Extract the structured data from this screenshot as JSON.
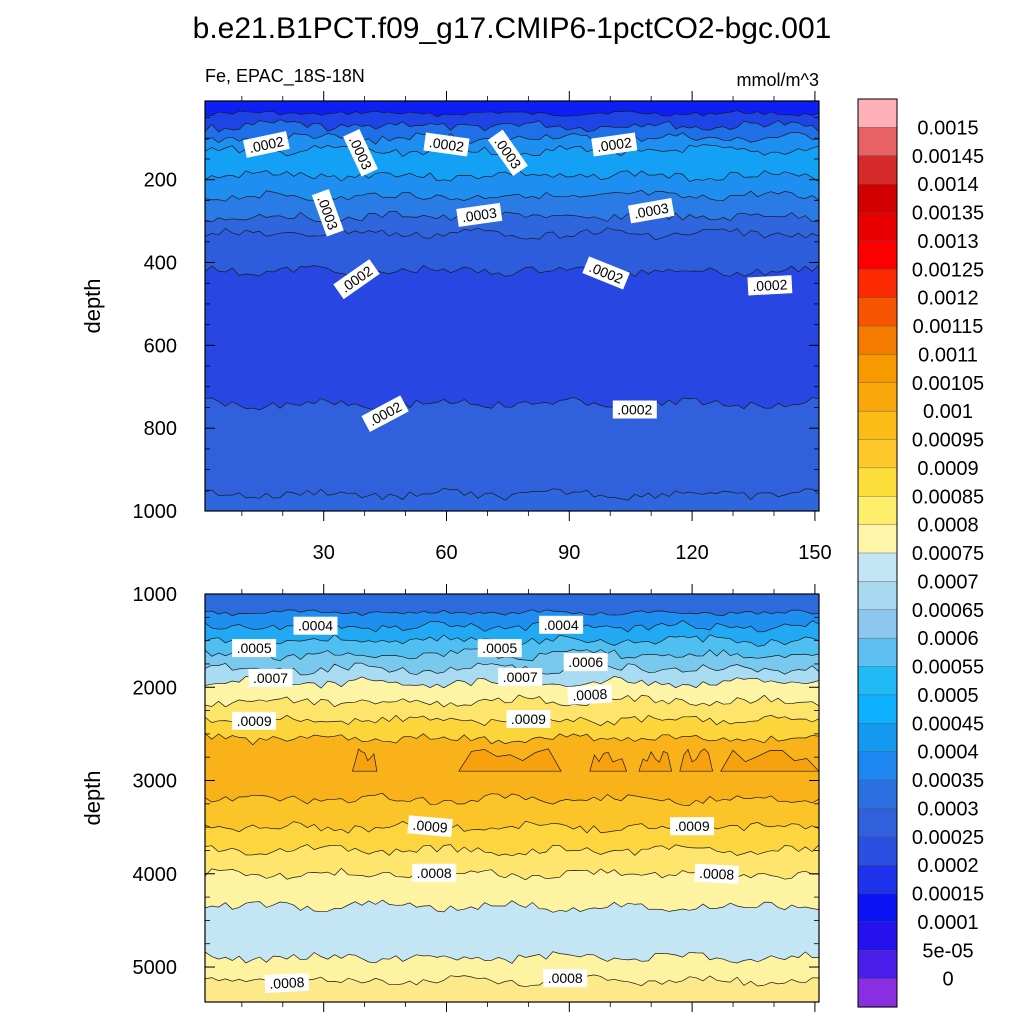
{
  "chart_data": {
    "type": "heatmap",
    "title": "b.e21.B1PCT.f09_g17.CMIP6-1pctCO2-bgc.001",
    "subtitle_left": "Fe, EPAC_18S-18N",
    "units": "mmol/m^3",
    "panels": [
      {
        "id": "upper",
        "ylabel": "depth",
        "ylim": [
          1000,
          10
        ],
        "xlim": [
          1,
          151
        ],
        "yticks": [
          "200",
          "400",
          "600",
          "800",
          "1000"
        ],
        "xticks": [
          "30",
          "60",
          "90",
          "120",
          "150"
        ],
        "bands": [
          {
            "from": 10,
            "to": 40,
            "color": "#0d1ff5"
          },
          {
            "from": 40,
            "to": 70,
            "color": "#1e44e6"
          },
          {
            "from": 70,
            "to": 100,
            "color": "#1e6fe8"
          },
          {
            "from": 100,
            "to": 130,
            "color": "#1e8ff0"
          },
          {
            "from": 130,
            "to": 190,
            "color": "#14a0f4"
          },
          {
            "from": 190,
            "to": 240,
            "color": "#1e8ff0"
          },
          {
            "from": 240,
            "to": 290,
            "color": "#2a7be6"
          },
          {
            "from": 290,
            "to": 330,
            "color": "#3066dd"
          },
          {
            "from": 330,
            "to": 420,
            "color": "#2d5cdc"
          },
          {
            "from": 420,
            "to": 740,
            "color": "#2746e2"
          },
          {
            "from": 740,
            "to": 960,
            "color": "#3060dc"
          },
          {
            "from": 960,
            "to": 1000,
            "color": "#3066dd"
          }
        ],
        "contour_labels": [
          {
            "text": ".0002",
            "x": 16,
            "y": 115,
            "rot": -12
          },
          {
            "text": ".0003",
            "x": 39,
            "y": 135,
            "rot": 65
          },
          {
            "text": ".0002",
            "x": 60,
            "y": 115,
            "rot": 8
          },
          {
            "text": ".0003",
            "x": 75,
            "y": 135,
            "rot": 55
          },
          {
            "text": ".0002",
            "x": 101,
            "y": 115,
            "rot": -8
          },
          {
            "text": ".0003",
            "x": 31,
            "y": 280,
            "rot": 70
          },
          {
            "text": ".0003",
            "x": 68,
            "y": 285,
            "rot": -8
          },
          {
            "text": ".0003",
            "x": 110,
            "y": 275,
            "rot": -10
          },
          {
            "text": ".0002",
            "x": 38,
            "y": 440,
            "rot": -35
          },
          {
            "text": ".0002",
            "x": 99,
            "y": 425,
            "rot": 22
          },
          {
            "text": ".0002",
            "x": 139,
            "y": 455,
            "rot": -3
          },
          {
            "text": ".0002",
            "x": 45,
            "y": 765,
            "rot": -28
          },
          {
            "text": ".0002",
            "x": 106,
            "y": 755,
            "rot": 0
          }
        ]
      },
      {
        "id": "lower",
        "ylabel": "depth",
        "ylim": [
          5375,
          1000
        ],
        "xlim": [
          1,
          151
        ],
        "yticks": [
          "1000",
          "2000",
          "3000",
          "4000",
          "5000"
        ],
        "xticks": [],
        "bands": [
          {
            "from": 1000,
            "to": 1200,
            "color": "#2d6bdc"
          },
          {
            "from": 1200,
            "to": 1350,
            "color": "#1e8ff0"
          },
          {
            "from": 1350,
            "to": 1500,
            "color": "#22a9f4"
          },
          {
            "from": 1500,
            "to": 1650,
            "color": "#4fbff2"
          },
          {
            "from": 1650,
            "to": 1800,
            "color": "#79c8ee"
          },
          {
            "from": 1800,
            "to": 1950,
            "color": "#a9dcf2"
          },
          {
            "from": 1950,
            "to": 2150,
            "color": "#fdf4a6"
          },
          {
            "from": 2150,
            "to": 2350,
            "color": "#fde46a"
          },
          {
            "from": 2350,
            "to": 2550,
            "color": "#fcd53a"
          },
          {
            "from": 2550,
            "to": 3200,
            "color": "#f9b21a"
          },
          {
            "from": 3200,
            "to": 3500,
            "color": "#fbc428"
          },
          {
            "from": 3500,
            "to": 3750,
            "color": "#fdd53e"
          },
          {
            "from": 3750,
            "to": 4000,
            "color": "#fde56e"
          },
          {
            "from": 4000,
            "to": 4350,
            "color": "#fef3a0"
          },
          {
            "from": 4350,
            "to": 4900,
            "color": "#c4e6f4"
          },
          {
            "from": 4900,
            "to": 5150,
            "color": "#fef3a0"
          },
          {
            "from": 5150,
            "to": 5375,
            "color": "#fde989"
          }
        ],
        "contour_labels": [
          {
            "text": ".0004",
            "x": 28,
            "y": 1340,
            "rot": 0
          },
          {
            "text": ".0004",
            "x": 88,
            "y": 1330,
            "rot": 0
          },
          {
            "text": ".0005",
            "x": 13,
            "y": 1580,
            "rot": 0
          },
          {
            "text": ".0005",
            "x": 73,
            "y": 1580,
            "rot": 0
          },
          {
            "text": ".0006",
            "x": 94,
            "y": 1730,
            "rot": 0
          },
          {
            "text": ".0007",
            "x": 17,
            "y": 1900,
            "rot": 0
          },
          {
            "text": ".0007",
            "x": 78,
            "y": 1890,
            "rot": 0
          },
          {
            "text": ".0008",
            "x": 95,
            "y": 2080,
            "rot": -3
          },
          {
            "text": ".0009",
            "x": 13,
            "y": 2360,
            "rot": 0
          },
          {
            "text": ".0009",
            "x": 80,
            "y": 2340,
            "rot": 0
          },
          {
            "text": ".0009",
            "x": 56,
            "y": 3490,
            "rot": 5
          },
          {
            "text": ".0009",
            "x": 120,
            "y": 3490,
            "rot": 0
          },
          {
            "text": ".0008",
            "x": 57,
            "y": 3990,
            "rot": 0
          },
          {
            "text": ".0008",
            "x": 126,
            "y": 4000,
            "rot": 3
          },
          {
            "text": ".0008",
            "x": 21,
            "y": 5170,
            "rot": -3
          },
          {
            "text": ".0008",
            "x": 89,
            "y": 5120,
            "rot": 0
          }
        ]
      }
    ],
    "colorbar": {
      "labels": [
        "0.0015",
        "0.00145",
        "0.0014",
        "0.00135",
        "0.0013",
        "0.00125",
        "0.0012",
        "0.00115",
        "0.0011",
        "0.00105",
        "0.001",
        "0.00095",
        "0.0009",
        "0.00085",
        "0.0008",
        "0.00075",
        "0.0007",
        "0.00065",
        "0.0006",
        "0.00055",
        "0.0005",
        "0.00045",
        "0.0004",
        "0.00035",
        "0.0003",
        "0.00025",
        "0.0002",
        "0.00015",
        "0.0001",
        "5e-05",
        "0"
      ],
      "colors": [
        "#fdb1b6",
        "#e86265",
        "#d62a2a",
        "#d20000",
        "#e80000",
        "#fc0000",
        "#fc2a00",
        "#f75400",
        "#f57a00",
        "#f79a00",
        "#f9a70a",
        "#fbbc18",
        "#fdc92a",
        "#fddd3a",
        "#fdee6c",
        "#fef5a8",
        "#c2e6f6",
        "#a9d9f1",
        "#8dc7ee",
        "#5dc0f0",
        "#22b9f7",
        "#0db0ff",
        "#1499f0",
        "#1e86f0",
        "#2a70e0",
        "#3060dc",
        "#2b4fe0",
        "#1e32ec",
        "#0a14f5",
        "#2510ee",
        "#4a1ee8",
        "#8a2ee2"
      ]
    }
  }
}
